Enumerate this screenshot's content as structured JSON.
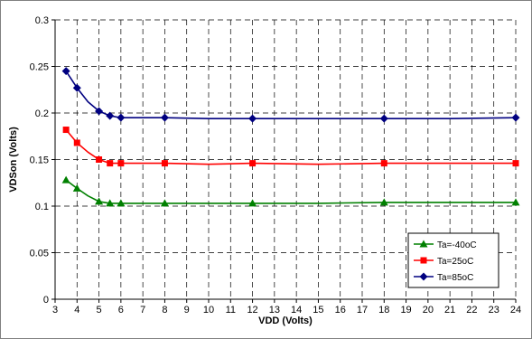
{
  "chart_data": {
    "type": "line",
    "title": "",
    "xlabel": "VDD (Volts)",
    "ylabel": "VDSon (Volts)",
    "xlim": [
      3,
      24
    ],
    "ylim": [
      0,
      0.3
    ],
    "x_ticks": [
      3,
      4,
      5,
      6,
      7,
      8,
      9,
      10,
      11,
      12,
      13,
      14,
      15,
      16,
      17,
      18,
      19,
      20,
      21,
      22,
      23,
      24
    ],
    "y_ticks": [
      0,
      0.05,
      0.1,
      0.15,
      0.2,
      0.25,
      0.3
    ],
    "grid": true,
    "legend_position": "bottom-right",
    "series": [
      {
        "name": "Ta=-40oC",
        "color": "#008000",
        "marker": "triangle",
        "x": [
          3.5,
          4,
          5,
          5.5,
          6,
          8,
          12,
          18,
          24
        ],
        "y": [
          0.128,
          0.119,
          0.105,
          0.103,
          0.103,
          0.103,
          0.103,
          0.104,
          0.104
        ],
        "curve_x": [
          3.5,
          4,
          4.5,
          5,
          5.5,
          6,
          8,
          10,
          12,
          15,
          18,
          21,
          24
        ],
        "curve_y": [
          0.128,
          0.119,
          0.111,
          0.105,
          0.103,
          0.103,
          0.103,
          0.103,
          0.103,
          0.103,
          0.104,
          0.104,
          0.104
        ]
      },
      {
        "name": "Ta=25oC",
        "color": "#ff0000",
        "marker": "square",
        "x": [
          3.5,
          4,
          5,
          5.5,
          6,
          8,
          12,
          18,
          24
        ],
        "y": [
          0.182,
          0.168,
          0.15,
          0.146,
          0.146,
          0.146,
          0.146,
          0.146,
          0.146
        ],
        "curve_x": [
          3.5,
          4,
          4.5,
          5,
          5.5,
          6,
          8,
          10,
          12,
          15,
          18,
          21,
          24
        ],
        "curve_y": [
          0.182,
          0.168,
          0.158,
          0.15,
          0.146,
          0.146,
          0.146,
          0.145,
          0.146,
          0.145,
          0.146,
          0.146,
          0.146
        ]
      },
      {
        "name": "Ta=85oC",
        "color": "#000080",
        "marker": "diamond",
        "x": [
          3.5,
          4,
          5,
          5.5,
          6,
          8,
          12,
          18,
          24
        ],
        "y": [
          0.245,
          0.227,
          0.202,
          0.197,
          0.195,
          0.195,
          0.194,
          0.194,
          0.195
        ],
        "curve_x": [
          3.5,
          4,
          4.5,
          5,
          5.5,
          6,
          8,
          10,
          12,
          15,
          18,
          21,
          24
        ],
        "curve_y": [
          0.245,
          0.227,
          0.212,
          0.202,
          0.197,
          0.195,
          0.195,
          0.194,
          0.194,
          0.194,
          0.194,
          0.194,
          0.195
        ]
      }
    ]
  }
}
